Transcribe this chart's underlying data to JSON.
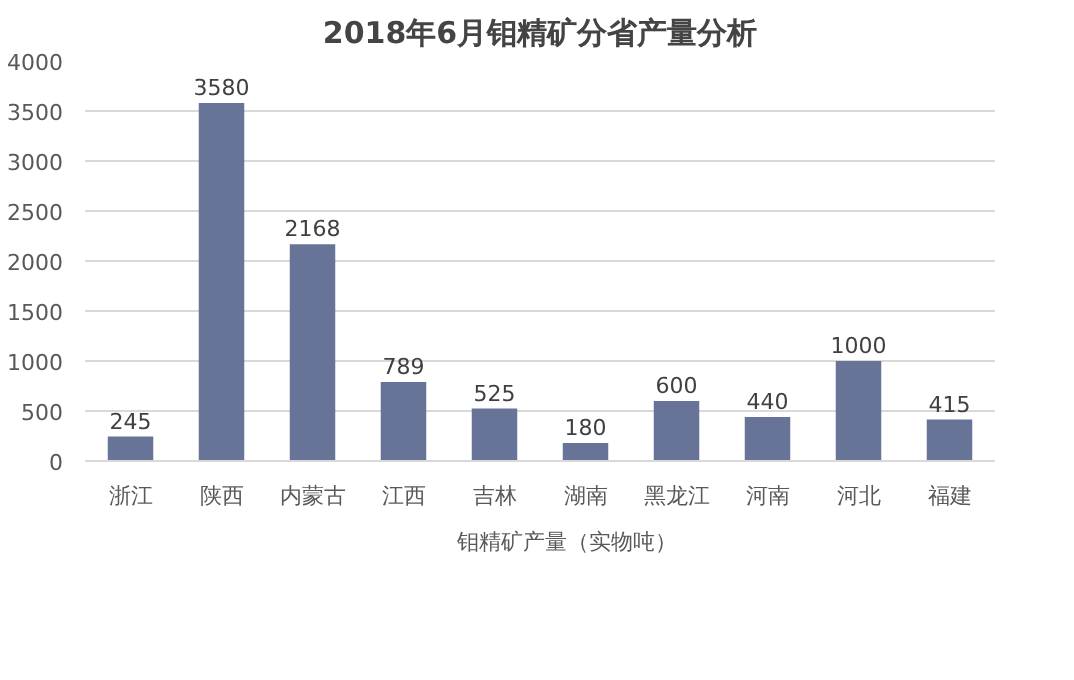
{
  "chart_data": {
    "type": "bar",
    "title": "2018年6月钼精矿分省产量分析",
    "categories": [
      "浙江",
      "陕西",
      "内蒙古",
      "江西",
      "吉林",
      "湖南",
      "黑龙江",
      "河南",
      "河北",
      "福建"
    ],
    "series": [
      {
        "name": "钼精矿产量（实物吨）",
        "color": "#687497",
        "values": [
          245,
          3580,
          2168,
          789,
          525,
          180,
          600,
          440,
          1000,
          415
        ]
      }
    ],
    "ylim": [
      0,
      4000
    ],
    "yticks": [
      0,
      500,
      1000,
      1500,
      2000,
      2500,
      3000,
      3500,
      4000
    ],
    "grid": "y",
    "legend": "bottom",
    "data_labels": true
  }
}
